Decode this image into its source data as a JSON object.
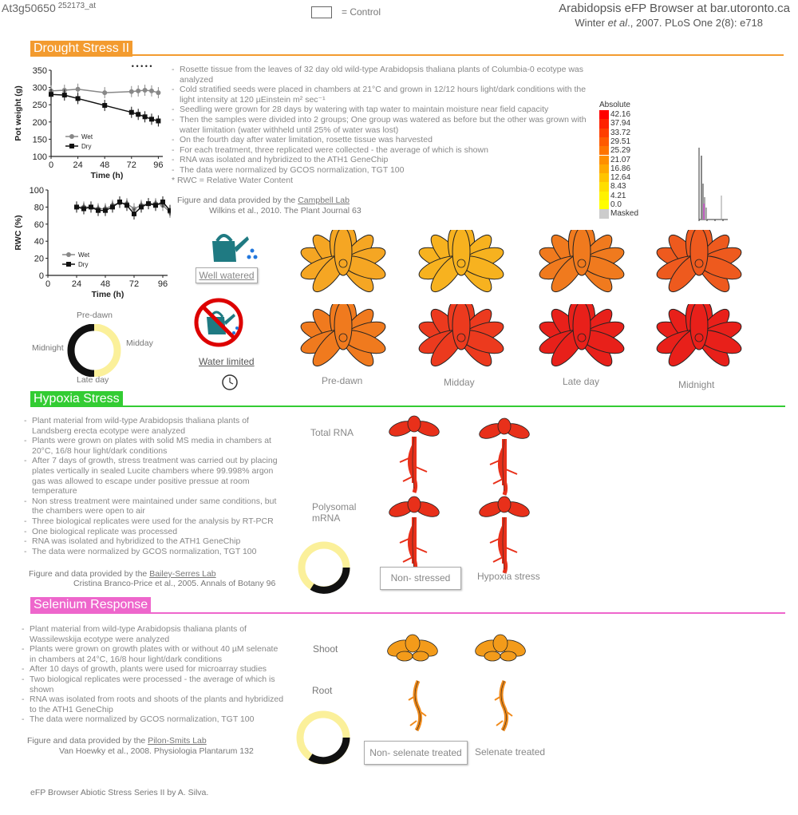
{
  "header": {
    "gene_id": "At3g50650",
    "probe_id": "252173_at",
    "control_label": "= Control",
    "app_title": "Arabidopsis eFP Browser at bar.utoronto.ca",
    "citation_pre": "Winter ",
    "citation_em": "et al",
    "citation_post": "., 2007. PLoS One 2(8): e718"
  },
  "colors": {
    "drought": "#f39b2f",
    "hypoxia": "#33cc33",
    "selenium": "#ee66cc"
  },
  "drought": {
    "title": "Drought Stress II",
    "notes": [
      "Rosette tissue from the leaves of 32 day old wild-type Arabidopsis thaliana plants of Columbia-0 ecotype was analyzed",
      "Cold stratified seeds were placed in chambers at 21°C and grown in 12/12 hours light/dark conditions with the light intensity at 120 µEinstein m² sec⁻¹",
      "Seedling were grown for 28 days by watering with tap water to maintain moisture near field capacity",
      "Then the samples were divided into 2 groups; One group was watered as  before but the other was grown with water limitation (water withheld until 25% of water was lost)",
      "On the fourth day after water limitation, rosette tissue was harvested",
      "For each treatment, three replicated were collected - the average of which is shown",
      "RNA was isolated and hybridized to the ATH1 GeneChip",
      "The data were normalized by GCOS normalization, TGT 100"
    ],
    "footnote": "*  RWC = Relative Water Content",
    "provided_by": "Figure and data provided by the ",
    "lab": "Campbell Lab",
    "reference": "Wilkins et al., 2010. The Plant Journal 63",
    "well_watered": "Well watered",
    "water_limited": "Water limited",
    "timepoints": [
      "Pre-dawn",
      "Midday",
      "Late day",
      "Midnight"
    ],
    "cycle_labels": {
      "top": "Pre-dawn",
      "right": "Midday",
      "bottom": "Late day",
      "left": "Midnight"
    },
    "well_colors": [
      "#f5a623",
      "#f7b21f",
      "#f07a1e",
      "#ee5a1e"
    ],
    "limited_colors": [
      "#f07a1e",
      "#ec3a1e",
      "#e8201a",
      "#e8201a"
    ],
    "clock_icon": "clock-icon",
    "watering_can_icon": "watering-can-icon",
    "no_water_icon": "prohibited-watering-icon"
  },
  "legend": {
    "title": "Absolute",
    "values": [
      "42.16",
      "37.94",
      "33.72",
      "29.51",
      "25.29",
      "21.07",
      "16.86",
      "12.64",
      "8.43",
      "4.21",
      "0.0",
      "Masked"
    ],
    "colors": [
      "#ff0000",
      "#ff2200",
      "#ff3e00",
      "#ff5a00",
      "#ff7400",
      "#ff8f00",
      "#ffa900",
      "#ffc400",
      "#ffde00",
      "#fff200",
      "#ffff00",
      "#cccccc"
    ]
  },
  "chart_data": [
    {
      "type": "line",
      "xlabel": "Time (h)",
      "ylabel": "Pot weight (g)",
      "xticks": [
        0,
        24,
        48,
        72,
        96
      ],
      "yticks": [
        100,
        150,
        200,
        250,
        300,
        350
      ],
      "xlim": [
        0,
        100
      ],
      "ylim": [
        100,
        350
      ],
      "significance_marks": "• • • • •",
      "legend_position": "bottom-left",
      "series": [
        {
          "name": "Wet",
          "x": [
            0,
            12,
            24,
            48,
            72,
            78,
            84,
            90,
            96
          ],
          "values": [
            290,
            292,
            295,
            285,
            288,
            290,
            292,
            290,
            285
          ],
          "color": "#888888"
        },
        {
          "name": "Dry",
          "x": [
            0,
            12,
            24,
            48,
            72,
            78,
            84,
            90,
            96
          ],
          "values": [
            280,
            278,
            268,
            248,
            228,
            222,
            215,
            208,
            203
          ],
          "color": "#111111"
        }
      ]
    },
    {
      "type": "line",
      "xlabel": "Time (h)",
      "ylabel": "RWC (%)",
      "xticks": [
        0,
        24,
        48,
        72,
        96
      ],
      "yticks": [
        0,
        20,
        40,
        60,
        80,
        100
      ],
      "xlim": [
        0,
        100
      ],
      "ylim": [
        0,
        100
      ],
      "legend_position": "bottom-left",
      "series": [
        {
          "name": "Wet",
          "x": [
            24,
            30,
            36,
            42,
            48,
            54,
            60,
            66,
            72,
            78,
            84,
            90,
            96,
            102
          ],
          "values": [
            80,
            80,
            80,
            78,
            78,
            82,
            85,
            84,
            78,
            82,
            84,
            84,
            82,
            74
          ],
          "color": "#888888"
        },
        {
          "name": "Dry",
          "x": [
            24,
            30,
            36,
            42,
            48,
            54,
            60,
            66,
            72,
            78,
            84,
            90,
            96,
            102
          ],
          "values": [
            80,
            78,
            80,
            76,
            76,
            80,
            86,
            82,
            72,
            80,
            84,
            82,
            86,
            76
          ],
          "color": "#111111"
        }
      ]
    }
  ],
  "hypoxia": {
    "title": "Hypoxia Stress",
    "notes": [
      "Plant material from wild-type Arabidopsis thaliana plants of Landsberg erecta ecotype were analyzed",
      "Plants were grown on plates with solid MS media in chambers at 20°C, 16/8 hour light/dark conditions",
      "After 7 days of growth, stress treatment was carried out by placing plates vertically in sealed Lucite chambers where 99.998% argon gas was allowed to escape under positive pressue at room temperature",
      "Non stress treatment were maintained under same conditions, but the chambers were open to air",
      "Three biological replicates were used for the analysis by RT-PCR",
      "One biological replicate was processed",
      "RNA was isolated and hybridized to the ATH1 GeneChip",
      "The data were normalized by GCOS normalization, TGT 100"
    ],
    "provided_by": "Figure and data provided by the ",
    "lab": "Bailey-Serres Lab",
    "reference": "Cristina Branco-Price et al., 2005. Annals of Botany 96",
    "total_rna": "Total RNA",
    "polysomal": "Polysomal mRNA",
    "non_stressed": "Non- stressed",
    "hypoxia_stress": "Hypoxia stress",
    "seedling_color": "#e8301a"
  },
  "selenium": {
    "title": "Selenium Response",
    "notes": [
      "Plant material from wild-type Arabidopsis thaliana plants of Wassilewskija ecotype were analyzed",
      "Plants were grown on growth plates with or without 40 µM selenate in chambers at 24°C, 16/8 hour light/dark conditions",
      "After 10 days of growth, plants were used for microarray studies",
      "Two biological replicates were processed - the average of which is shown",
      "RNA was isolated from roots and shoots of the plants and hybridized to the ATH1 GeneChip",
      "The data were normalized by GCOS normalization, TGT 100"
    ],
    "provided_by": "Figure and data provided by the ",
    "lab": "Pilon-Smits Lab",
    "reference": "Van Hoewky et al., 2008. Physiologia Plantarum 132",
    "shoot": "Shoot",
    "root": "Root",
    "non_treated": "Non- selenate treated",
    "treated": "Selenate treated",
    "shoot_color": "#f39b1a",
    "root_color": "#f08a1a"
  },
  "footer": "eFP Browser Abiotic Stress Series II by A. Silva."
}
